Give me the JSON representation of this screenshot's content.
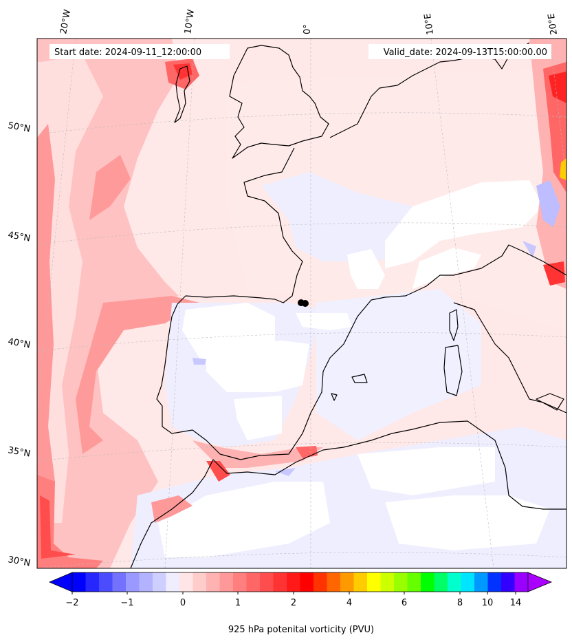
{
  "header": {
    "start_date": "Start date: 2024-09-11_12:00:00",
    "valid_date": "Valid_date: 2024-09-13T15:00:00.00"
  },
  "map": {
    "lon_labels": [
      "20°W",
      "10°W",
      "0°",
      "10°E",
      "20°E"
    ],
    "lat_labels": [
      "50°N",
      "45°N",
      "40°N",
      "35°N",
      "30°N"
    ],
    "marker": "black dot"
  },
  "colorbar": {
    "title": "925 hPa potenital vorticity (PVU)",
    "tick_labels": [
      "−2",
      "−1",
      "0",
      "1",
      "2",
      "4",
      "6",
      "8",
      "10",
      "14"
    ],
    "colors": [
      "#0000ff",
      "#2626ff",
      "#4c4cff",
      "#7272ff",
      "#9999ff",
      "#b2b2ff",
      "#cfcfff",
      "#eeeeff",
      "#ffe5e5",
      "#ffcccc",
      "#ffb2b2",
      "#ff9999",
      "#ff7f7f",
      "#ff6666",
      "#ff4c4c",
      "#ff3333",
      "#ff1919",
      "#ff0000",
      "#ff3300",
      "#ff6600",
      "#ff9900",
      "#ffcc00",
      "#ffff00",
      "#ccff00",
      "#99ff00",
      "#66ff00",
      "#00ff00",
      "#00ff66",
      "#00ffcc",
      "#00e5ff",
      "#0099ff",
      "#0033ff",
      "#3300ff",
      "#9900ff"
    ],
    "extend_low_color": "#0000ff",
    "extend_high_color": "#aa00ff"
  }
}
